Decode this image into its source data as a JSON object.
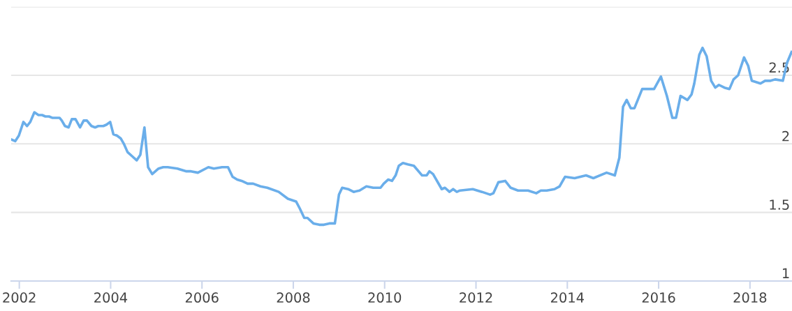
{
  "chart_data": {
    "type": "line",
    "grid": "y",
    "marker": "none",
    "line_style": "solid",
    "xlim": [
      2001.82,
      2018.92
    ],
    "xticks": [
      2002,
      2004,
      2006,
      2008,
      2010,
      2012,
      2014,
      2016,
      2018
    ],
    "ylim": [
      1,
      3
    ],
    "yticks": [
      1,
      1.5,
      2,
      2.5,
      {
        "value": 3,
        "label": null
      }
    ],
    "x": [
      2001.84,
      2001.91,
      2001.99,
      2002.09,
      2002.17,
      2002.24,
      2002.33,
      2002.42,
      2002.5,
      2002.57,
      2002.65,
      2002.72,
      2002.8,
      2002.88,
      2002.93,
      2003.0,
      2003.08,
      2003.15,
      2003.23,
      2003.33,
      2003.41,
      2003.48,
      2003.58,
      2003.66,
      2003.73,
      2003.84,
      2003.91,
      2003.99,
      2004.06,
      2004.14,
      2004.22,
      2004.29,
      2004.37,
      2004.47,
      2004.57,
      2004.65,
      2004.74,
      2004.82,
      2004.91,
      2005.05,
      2005.15,
      2005.25,
      2005.46,
      2005.66,
      2005.76,
      2005.91,
      2006.14,
      2006.26,
      2006.44,
      2006.57,
      2006.67,
      2006.77,
      2006.87,
      2007.0,
      2007.12,
      2007.28,
      2007.43,
      2007.68,
      2007.88,
      2008.06,
      2008.14,
      2008.24,
      2008.31,
      2008.44,
      2008.57,
      2008.67,
      2008.79,
      2008.91,
      2009.0,
      2009.07,
      2009.2,
      2009.32,
      2009.45,
      2009.6,
      2009.75,
      2009.91,
      2009.98,
      2010.08,
      2010.16,
      2010.24,
      2010.31,
      2010.4,
      2010.51,
      2010.64,
      2010.82,
      2010.92,
      2010.98,
      2011.06,
      2011.25,
      2011.32,
      2011.42,
      2011.5,
      2011.58,
      2011.65,
      2011.93,
      2012.13,
      2012.31,
      2012.38,
      2012.49,
      2012.64,
      2012.76,
      2012.92,
      2013.14,
      2013.32,
      2013.42,
      2013.55,
      2013.72,
      2013.83,
      2013.95,
      2014.16,
      2014.41,
      2014.57,
      2014.86,
      2015.04,
      2015.14,
      2015.22,
      2015.3,
      2015.39,
      2015.47,
      2015.64,
      2015.72,
      2015.82,
      2015.9,
      2016.05,
      2016.18,
      2016.3,
      2016.38,
      2016.48,
      2016.63,
      2016.72,
      2016.78,
      2016.89,
      2016.96,
      2017.05,
      2017.15,
      2017.24,
      2017.32,
      2017.44,
      2017.55,
      2017.64,
      2017.74,
      2017.87,
      2017.96,
      2018.04,
      2018.23,
      2018.33,
      2018.45,
      2018.55,
      2018.72,
      2018.81,
      2018.91
    ],
    "series": [
      {
        "color": "#6aaeea",
        "values": [
          2.03,
          2.02,
          2.06,
          2.16,
          2.13,
          2.16,
          2.23,
          2.21,
          2.21,
          2.2,
          2.2,
          2.19,
          2.19,
          2.19,
          2.17,
          2.13,
          2.12,
          2.18,
          2.18,
          2.12,
          2.17,
          2.17,
          2.13,
          2.12,
          2.13,
          2.13,
          2.14,
          2.16,
          2.07,
          2.06,
          2.04,
          2.0,
          1.94,
          1.91,
          1.88,
          1.92,
          2.12,
          1.83,
          1.78,
          1.82,
          1.83,
          1.83,
          1.82,
          1.8,
          1.8,
          1.79,
          1.83,
          1.82,
          1.83,
          1.83,
          1.76,
          1.74,
          1.73,
          1.71,
          1.71,
          1.69,
          1.68,
          1.65,
          1.6,
          1.58,
          1.53,
          1.46,
          1.46,
          1.42,
          1.41,
          1.41,
          1.42,
          1.42,
          1.63,
          1.68,
          1.67,
          1.65,
          1.66,
          1.69,
          1.68,
          1.68,
          1.71,
          1.74,
          1.73,
          1.77,
          1.84,
          1.86,
          1.85,
          1.84,
          1.77,
          1.77,
          1.8,
          1.78,
          1.67,
          1.68,
          1.65,
          1.67,
          1.65,
          1.66,
          1.67,
          1.65,
          1.63,
          1.64,
          1.72,
          1.73,
          1.68,
          1.66,
          1.66,
          1.64,
          1.66,
          1.66,
          1.67,
          1.69,
          1.76,
          1.75,
          1.77,
          1.75,
          1.79,
          1.77,
          1.9,
          2.27,
          2.32,
          2.26,
          2.26,
          2.4,
          2.4,
          2.4,
          2.4,
          2.49,
          2.35,
          2.19,
          2.19,
          2.35,
          2.32,
          2.36,
          2.44,
          2.65,
          2.7,
          2.64,
          2.46,
          2.41,
          2.43,
          2.41,
          2.4,
          2.47,
          2.5,
          2.63,
          2.57,
          2.46,
          2.44,
          2.46,
          2.46,
          2.47,
          2.46,
          2.59,
          2.67
        ]
      }
    ]
  }
}
